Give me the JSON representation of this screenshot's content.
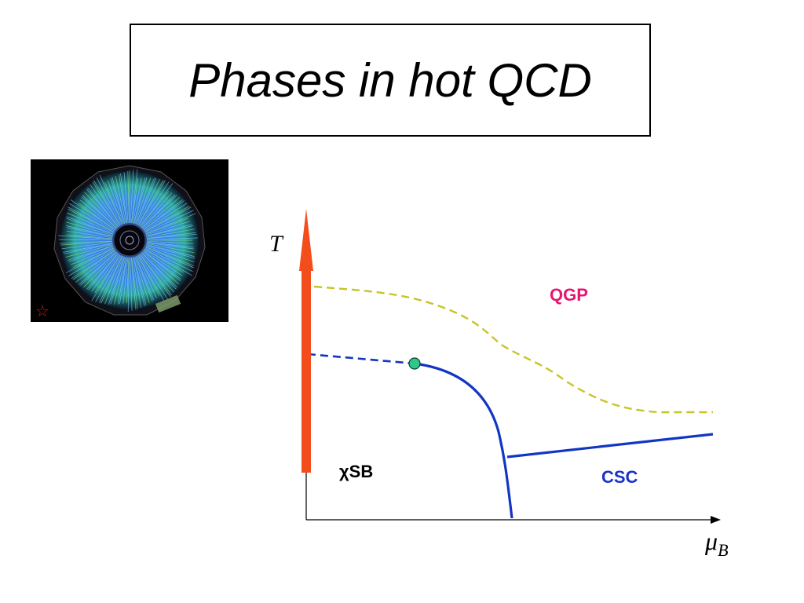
{
  "title": "Phases in hot QCD",
  "diagram": {
    "axis_y_label": "T",
    "axis_x_label_main": "μ",
    "axis_x_label_sub": "B",
    "region_qgp": "QGP",
    "region_chisb": "χSB",
    "region_csc": "CSC"
  },
  "colors": {
    "qgp": "#e8156e",
    "csc": "#1a33c4",
    "chisb": "#000000",
    "transition_line": "#1236c4",
    "dashed_yellow": "#c8c428",
    "rhic_arrow": "#f24d1a",
    "critical_point": "#2ec88a"
  }
}
